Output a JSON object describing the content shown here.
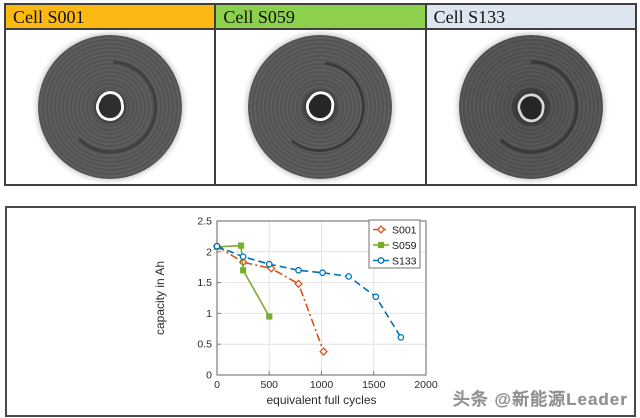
{
  "cells": [
    {
      "label": "Cell S001",
      "header_color": "#FDB913"
    },
    {
      "label": "Cell S059",
      "header_color": "#8CD04B"
    },
    {
      "label": "Cell S133",
      "header_color": "#DCE5F0"
    }
  ],
  "watermark": {
    "text": "头条 @新能源Leader"
  },
  "chart_data": {
    "type": "line",
    "title": "",
    "xlabel": "equivalent full cycles",
    "ylabel": "capacity in Ah",
    "xlim": [
      0,
      2000
    ],
    "ylim": [
      0,
      2.5
    ],
    "xticks": [
      0,
      500,
      1000,
      1500,
      2000
    ],
    "yticks": [
      0,
      0.5,
      1,
      1.5,
      2,
      2.5
    ],
    "grid": true,
    "legend_position": "top-right",
    "series": [
      {
        "name": "S001",
        "color": "#D95319",
        "line_style": "dash-dot",
        "marker": "diamond",
        "points": [
          [
            0,
            2.09
          ],
          [
            250,
            1.83
          ],
          [
            520,
            1.73
          ],
          [
            780,
            1.48
          ],
          [
            1020,
            0.38
          ]
        ]
      },
      {
        "name": "S059",
        "color": "#77AC30",
        "line_style": "solid",
        "marker": "square",
        "points": [
          [
            0,
            2.08
          ],
          [
            230,
            2.1
          ],
          [
            250,
            1.7
          ],
          [
            500,
            0.95
          ]
        ]
      },
      {
        "name": "S133",
        "color": "#0072BD",
        "line_style": "dashed",
        "marker": "circle",
        "points": [
          [
            0,
            2.09
          ],
          [
            250,
            1.92
          ],
          [
            500,
            1.8
          ],
          [
            780,
            1.7
          ],
          [
            1010,
            1.66
          ],
          [
            1260,
            1.6
          ],
          [
            1520,
            1.27
          ],
          [
            1760,
            0.61
          ]
        ]
      }
    ]
  }
}
